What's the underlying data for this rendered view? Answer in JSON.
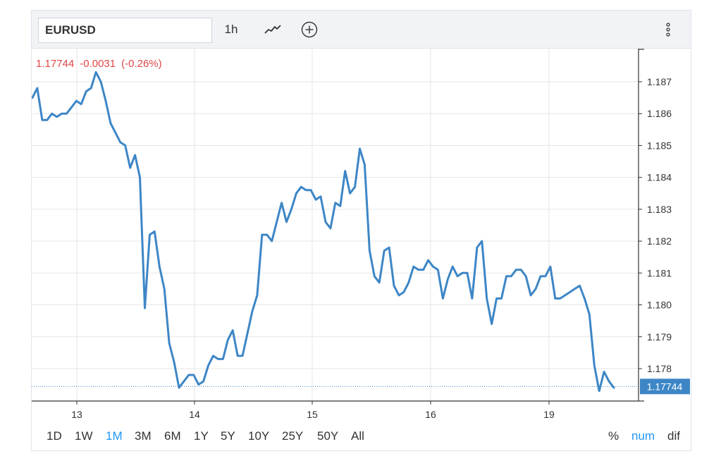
{
  "toolbar": {
    "symbol": "EURUSD",
    "interval": "1h",
    "style_icon": "line-chart-icon",
    "add_icon": "plus-circle-icon",
    "more_icon": "vertical-dots-icon"
  },
  "quote": {
    "last": "1.17744",
    "change": "-0.0031",
    "change_pct": "(-0.26%)"
  },
  "ranges": [
    {
      "label": "1D",
      "active": false
    },
    {
      "label": "1W",
      "active": false
    },
    {
      "label": "1M",
      "active": true
    },
    {
      "label": "3M",
      "active": false
    },
    {
      "label": "6M",
      "active": false
    },
    {
      "label": "1Y",
      "active": false
    },
    {
      "label": "5Y",
      "active": false
    },
    {
      "label": "10Y",
      "active": false
    },
    {
      "label": "25Y",
      "active": false
    },
    {
      "label": "50Y",
      "active": false
    },
    {
      "label": "All",
      "active": false
    }
  ],
  "scale_modes": [
    {
      "label": "%",
      "active": false
    },
    {
      "label": "num",
      "active": true
    },
    {
      "label": "dif",
      "active": false
    }
  ],
  "colors": {
    "line": "#3d86c6",
    "price_label_bg": "#3d86c6",
    "negative": "#e04545",
    "grid": "#e6e6e6",
    "axis": "#333333"
  },
  "chart_data": {
    "type": "line",
    "title": "",
    "xlabel": "",
    "ylabel": "",
    "ylim": [
      1.1769,
      1.188
    ],
    "y_ticks": [
      "1.178",
      "1.179",
      "1.180",
      "1.181",
      "1.182",
      "1.183",
      "1.184",
      "1.185",
      "1.186",
      "1.187"
    ],
    "x_ticks": [
      "13",
      "14",
      "15",
      "16",
      "19"
    ],
    "last_price_label": "1.17744",
    "grid": true,
    "series": [
      {
        "values": [
          1.1865,
          1.1868,
          1.1858,
          1.1858,
          1.186,
          1.1859,
          1.186,
          1.186,
          1.1862,
          1.1864,
          1.1863,
          1.1867,
          1.1868,
          1.1873,
          1.187,
          1.1864,
          1.1857,
          1.1854,
          1.1851,
          1.185,
          1.1843,
          1.1847,
          1.184,
          1.1799,
          1.1822,
          1.1823,
          1.1812,
          1.1805,
          1.1788,
          1.1782,
          1.1774,
          1.1776,
          1.1778,
          1.1778,
          1.1775,
          1.1776,
          1.1781,
          1.1784,
          1.1783,
          1.1783,
          1.1789,
          1.1792,
          1.1784,
          1.1784,
          1.1791,
          1.1798,
          1.1803,
          1.1822,
          1.1822,
          1.182,
          1.1826,
          1.1832,
          1.1826,
          1.183,
          1.1835,
          1.1837,
          1.1836,
          1.1836,
          1.1833,
          1.1834,
          1.1826,
          1.1824,
          1.1832,
          1.1831,
          1.1842,
          1.1835,
          1.1837,
          1.1849,
          1.1844,
          1.1817,
          1.1809,
          1.1807,
          1.1817,
          1.1818,
          1.1806,
          1.1803,
          1.1804,
          1.1807,
          1.1812,
          1.1811,
          1.1811,
          1.1814,
          1.1812,
          1.1811,
          1.1802,
          1.1808,
          1.1812,
          1.1809,
          1.181,
          1.181,
          1.1802,
          1.1818,
          1.182,
          1.1802,
          1.1794,
          1.1802,
          1.1802,
          1.1809,
          1.1809,
          1.1811,
          1.1811,
          1.1809,
          1.1803,
          1.1805,
          1.1809,
          1.1809,
          1.1812,
          1.1802,
          1.1802,
          1.1803,
          1.1804,
          1.1805,
          1.1806,
          1.1802,
          1.1797,
          1.1781,
          1.1773,
          1.1779,
          1.1776,
          1.1774
        ]
      }
    ]
  }
}
